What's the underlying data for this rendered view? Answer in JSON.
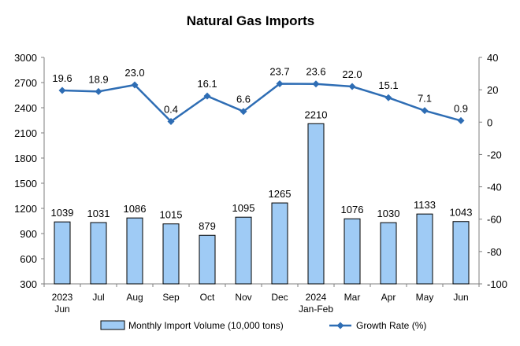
{
  "chart_data": {
    "type": "bar",
    "title": "Natural Gas Imports",
    "categories": [
      [
        "2023",
        "Jun"
      ],
      [
        "Jul"
      ],
      [
        "Aug"
      ],
      [
        "Sep"
      ],
      [
        "Oct"
      ],
      [
        "Nov"
      ],
      [
        "Dec"
      ],
      [
        "2024",
        "Jan-Feb"
      ],
      [
        "Mar"
      ],
      [
        "Apr"
      ],
      [
        "May"
      ],
      [
        "Jun"
      ]
    ],
    "series": [
      {
        "name": "Monthly Import Volume (10,000 tons)",
        "type": "bar",
        "axis": "left",
        "color": "#9fcbf5",
        "values": [
          1039,
          1031,
          1086,
          1015,
          879,
          1095,
          1265,
          2210,
          1076,
          1030,
          1133,
          1043
        ]
      },
      {
        "name": "Growth Rate (%)",
        "type": "line",
        "axis": "right",
        "color": "#2e6db4",
        "values": [
          19.6,
          18.9,
          23.0,
          0.4,
          16.1,
          6.6,
          23.7,
          23.6,
          22.0,
          15.1,
          7.1,
          0.9
        ],
        "labels": [
          "19.6",
          "18.9",
          "23.0",
          "0.4",
          "16.1",
          "6.6",
          "23.7",
          "23.6",
          "22.0",
          "15.1",
          "7.1",
          "0.9"
        ]
      }
    ],
    "y_left": {
      "ylim": [
        300,
        3000
      ],
      "ticks": [
        300,
        600,
        900,
        1200,
        1500,
        1800,
        2100,
        2400,
        2700,
        3000
      ]
    },
    "y_right": {
      "ylim": [
        -100,
        40
      ],
      "ticks": [
        -100,
        -80,
        -60,
        -40,
        -20,
        0,
        20,
        40
      ]
    },
    "grid": false,
    "legend": "bottom"
  }
}
